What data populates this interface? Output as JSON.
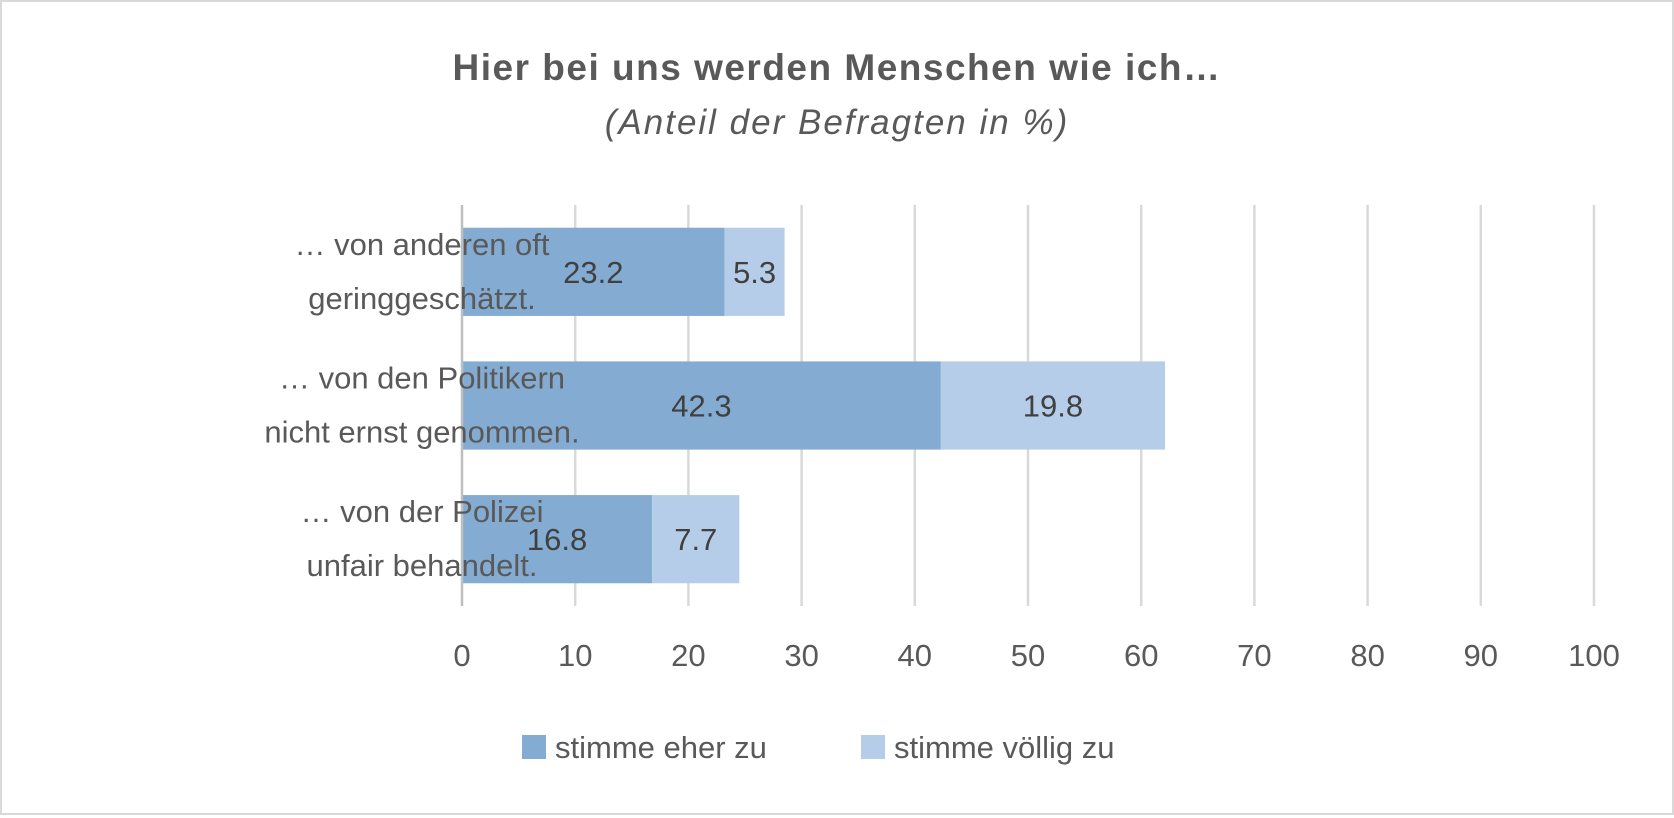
{
  "chart_data": {
    "type": "bar",
    "orientation": "horizontal",
    "stacked": true,
    "title": "Hier bei uns werden Menschen wie ich…",
    "subtitle": "(Anteil der Befragten in %)",
    "categories": [
      [
        "… von anderen oft",
        "geringgeschätzt."
      ],
      [
        "… von den Politikern",
        "nicht ernst genommen."
      ],
      [
        "… von der Polizei",
        "unfair behandelt."
      ]
    ],
    "series": [
      {
        "name": "stimme eher zu",
        "values": [
          23.2,
          42.3,
          16.8
        ],
        "color": "#84acd3"
      },
      {
        "name": "stimme völlig zu",
        "values": [
          5.3,
          19.8,
          7.7
        ],
        "color": "#b6cdea"
      }
    ],
    "xlim": [
      0,
      100
    ],
    "xticks": [
      "0",
      "10",
      "20",
      "30",
      "40",
      "50",
      "60",
      "70",
      "80",
      "90",
      "100"
    ],
    "grid": true,
    "legend_position": "bottom"
  }
}
